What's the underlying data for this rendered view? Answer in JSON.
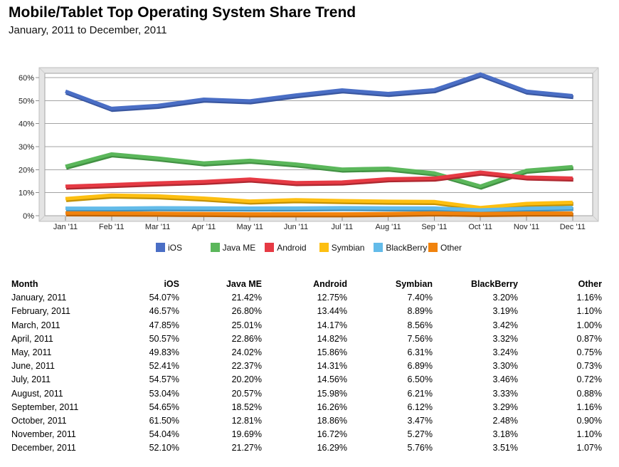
{
  "header": {
    "title": "Mobile/Tablet Top Operating System Share Trend",
    "subtitle": "January, 2011 to December, 2011"
  },
  "chart_data": {
    "type": "line",
    "title": "Mobile/Tablet Top Operating System Share Trend",
    "x_labels": [
      "Jan '11",
      "Feb '11",
      "Mar '11",
      "Apr '11",
      "May '11",
      "Jun '11",
      "Jul '11",
      "Aug '11",
      "Sep '11",
      "Oct '11",
      "Nov '11",
      "Dec '11"
    ],
    "y_tick_labels": [
      "0%",
      "10%",
      "20%",
      "30%",
      "40%",
      "50%",
      "60%"
    ],
    "ylim": [
      0,
      62
    ],
    "grid": true,
    "legend_position": "bottom",
    "frame_color": "#E4E4E4",
    "gridline_color": "#A3A3A3",
    "series": [
      {
        "name": "iOS",
        "color": "#4A6EC5",
        "shadow_color": "#3A57A0",
        "values": [
          54.07,
          46.57,
          47.85,
          50.57,
          49.83,
          52.41,
          54.57,
          53.04,
          54.65,
          61.5,
          54.04,
          52.1
        ]
      },
      {
        "name": "Java ME",
        "color": "#5BB75B",
        "shadow_color": "#429143",
        "values": [
          21.42,
          26.8,
          25.01,
          22.86,
          24.02,
          22.37,
          20.2,
          20.57,
          18.52,
          12.81,
          19.69,
          21.27
        ]
      },
      {
        "name": "Android",
        "color": "#E63A44",
        "shadow_color": "#AE2830",
        "values": [
          12.75,
          13.44,
          14.17,
          14.82,
          15.86,
          14.31,
          14.56,
          15.98,
          16.26,
          18.86,
          16.72,
          16.29
        ]
      },
      {
        "name": "Symbian",
        "color": "#FDBF11",
        "shadow_color": "#C49100",
        "values": [
          7.4,
          8.89,
          8.56,
          7.56,
          6.31,
          6.89,
          6.5,
          6.21,
          6.12,
          3.47,
          5.27,
          5.76
        ]
      },
      {
        "name": "BlackBerry",
        "color": "#63BBE9",
        "shadow_color": "#4492BC",
        "values": [
          3.2,
          3.19,
          3.42,
          3.32,
          3.24,
          3.3,
          3.46,
          3.33,
          3.29,
          2.48,
          3.18,
          3.51
        ]
      },
      {
        "name": "Other",
        "color": "#F1830D",
        "shadow_color": "#BC6305",
        "values": [
          1.16,
          1.1,
          1.0,
          0.87,
          0.75,
          0.73,
          0.72,
          0.88,
          1.16,
          0.9,
          1.1,
          1.07
        ]
      }
    ]
  },
  "table": {
    "columns": [
      "Month",
      "iOS",
      "Java ME",
      "Android",
      "Symbian",
      "BlackBerry",
      "Other"
    ],
    "rows": [
      [
        "January, 2011",
        "54.07%",
        "21.42%",
        "12.75%",
        "7.40%",
        "3.20%",
        "1.16%"
      ],
      [
        "February, 2011",
        "46.57%",
        "26.80%",
        "13.44%",
        "8.89%",
        "3.19%",
        "1.10%"
      ],
      [
        "March, 2011",
        "47.85%",
        "25.01%",
        "14.17%",
        "8.56%",
        "3.42%",
        "1.00%"
      ],
      [
        "April, 2011",
        "50.57%",
        "22.86%",
        "14.82%",
        "7.56%",
        "3.32%",
        "0.87%"
      ],
      [
        "May, 2011",
        "49.83%",
        "24.02%",
        "15.86%",
        "6.31%",
        "3.24%",
        "0.75%"
      ],
      [
        "June, 2011",
        "52.41%",
        "22.37%",
        "14.31%",
        "6.89%",
        "3.30%",
        "0.73%"
      ],
      [
        "July, 2011",
        "54.57%",
        "20.20%",
        "14.56%",
        "6.50%",
        "3.46%",
        "0.72%"
      ],
      [
        "August, 2011",
        "53.04%",
        "20.57%",
        "15.98%",
        "6.21%",
        "3.33%",
        "0.88%"
      ],
      [
        "September, 2011",
        "54.65%",
        "18.52%",
        "16.26%",
        "6.12%",
        "3.29%",
        "1.16%"
      ],
      [
        "October, 2011",
        "61.50%",
        "12.81%",
        "18.86%",
        "3.47%",
        "2.48%",
        "0.90%"
      ],
      [
        "November, 2011",
        "54.04%",
        "19.69%",
        "16.72%",
        "5.27%",
        "3.18%",
        "1.10%"
      ],
      [
        "December, 2011",
        "52.10%",
        "21.27%",
        "16.29%",
        "5.76%",
        "3.51%",
        "1.07%"
      ]
    ]
  }
}
